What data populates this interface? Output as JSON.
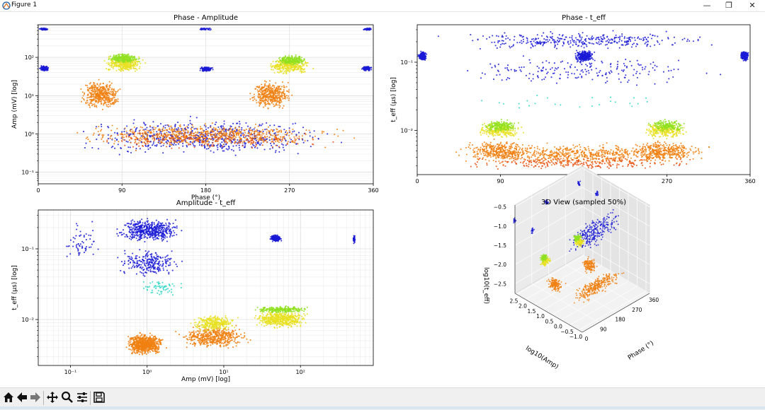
{
  "window": {
    "title": "Figure 1",
    "minimize_glyph": "—",
    "maximize_glyph": "❐",
    "close_glyph": "✕"
  },
  "colors": {
    "blue": "#1a1ad6",
    "cyan": "#30d8c8",
    "green": "#8fe020",
    "yellow": "#e8e020",
    "orange": "#f08010",
    "red": "#e85010"
  },
  "toolbar": {
    "items": [
      "home-icon",
      "back-icon",
      "forward-icon",
      "pan-icon",
      "zoom-icon",
      "configure-subplots-icon",
      "save-icon"
    ]
  },
  "chart_data": [
    {
      "type": "scatter",
      "title": "Phase - Amplitude",
      "xlabel": "Phase (°)",
      "ylabel": "Amp (mV) [log]",
      "xlim": [
        0,
        360
      ],
      "ylim_log10": [
        -1.3,
        2.85
      ],
      "xticks": [
        0,
        90,
        180,
        270,
        360
      ],
      "xtick_labels": [
        "0",
        "90",
        "180",
        "270",
        "360"
      ],
      "yticks_log10": [
        -1,
        0,
        1,
        2
      ],
      "ytick_labels": [
        "10⁻¹",
        "10⁰",
        "10¹",
        "10²"
      ],
      "grid": true,
      "clusters": [
        {
          "color": "blue",
          "n": 70,
          "x": [
            0,
            12
          ],
          "y": [
            2.7,
            2.77
          ]
        },
        {
          "color": "blue",
          "n": 70,
          "x": [
            348,
            360
          ],
          "y": [
            2.7,
            2.77
          ]
        },
        {
          "color": "blue",
          "n": 40,
          "x": [
            170,
            190
          ],
          "y": [
            2.7,
            2.77
          ]
        },
        {
          "color": "blue",
          "n": 110,
          "x": [
            0,
            13
          ],
          "y": [
            1.62,
            1.8
          ]
        },
        {
          "color": "blue",
          "n": 110,
          "x": [
            171,
            190
          ],
          "y": [
            1.6,
            1.78
          ]
        },
        {
          "color": "blue",
          "n": 90,
          "x": [
            346,
            360
          ],
          "y": [
            1.62,
            1.8
          ]
        },
        {
          "color": "blue",
          "n": 650,
          "x": [
            0,
            360
          ],
          "y": [
            -0.7,
            0.55
          ]
        },
        {
          "color": "orange",
          "n": 700,
          "x": [
            0,
            360
          ],
          "y": [
            -0.4,
            0.35
          ]
        },
        {
          "color": "red",
          "n": 200,
          "x": [
            0,
            360
          ],
          "y": [
            -0.5,
            0.2
          ]
        },
        {
          "color": "orange",
          "n": 420,
          "x": [
            40,
            95
          ],
          "y": [
            0.55,
            1.5
          ]
        },
        {
          "color": "orange",
          "n": 420,
          "x": [
            222,
            278
          ],
          "y": [
            0.55,
            1.5
          ]
        },
        {
          "color": "yellow",
          "n": 300,
          "x": [
            65,
            120
          ],
          "y": [
            1.55,
            2.1
          ]
        },
        {
          "color": "green",
          "n": 220,
          "x": [
            70,
            115
          ],
          "y": [
            1.8,
            2.15
          ]
        },
        {
          "color": "yellow",
          "n": 300,
          "x": [
            240,
            300
          ],
          "y": [
            1.5,
            2.05
          ]
        },
        {
          "color": "green",
          "n": 220,
          "x": [
            250,
            295
          ],
          "y": [
            1.75,
            2.1
          ]
        }
      ]
    },
    {
      "type": "scatter",
      "title": "Phase - t_eff",
      "xlabel": "Phase (°)",
      "ylabel": "t_eff (µs) [log]",
      "xlim": [
        0,
        360
      ],
      "ylim_log10": [
        -2.65,
        -0.45
      ],
      "xticks": [
        0,
        90,
        180,
        270,
        360
      ],
      "xtick_labels": [
        "0",
        "90",
        "180",
        "270",
        "360"
      ],
      "yticks_log10": [
        -2,
        -1
      ],
      "ytick_labels": [
        "10⁻²",
        "10⁻¹"
      ],
      "grid": false,
      "clusters": [
        {
          "color": "blue",
          "n": 350,
          "x": [
            0,
            360
          ],
          "y": [
            -0.85,
            -0.52
          ]
        },
        {
          "color": "blue",
          "n": 200,
          "x": [
            0,
            360
          ],
          "y": [
            -1.4,
            -0.85
          ]
        },
        {
          "color": "blue",
          "n": 220,
          "x": [
            0,
            12
          ],
          "y": [
            -1.0,
            -0.82
          ]
        },
        {
          "color": "blue",
          "n": 260,
          "x": [
            167,
            194
          ],
          "y": [
            -1.02,
            -0.8
          ]
        },
        {
          "color": "blue",
          "n": 220,
          "x": [
            348,
            360
          ],
          "y": [
            -1.0,
            -0.82
          ]
        },
        {
          "color": "cyan",
          "n": 25,
          "x": [
            20,
            340
          ],
          "y": [
            -1.75,
            -1.4
          ]
        },
        {
          "color": "orange",
          "n": 650,
          "x": [
            0,
            360
          ],
          "y": [
            -2.55,
            -2.15
          ]
        },
        {
          "color": "red",
          "n": 250,
          "x": [
            0,
            360
          ],
          "y": [
            -2.6,
            -2.35
          ]
        },
        {
          "color": "orange",
          "n": 300,
          "x": [
            40,
            135
          ],
          "y": [
            -2.5,
            -2.1
          ]
        },
        {
          "color": "orange",
          "n": 300,
          "x": [
            220,
            315
          ],
          "y": [
            -2.5,
            -2.1
          ]
        },
        {
          "color": "yellow",
          "n": 260,
          "x": [
            60,
            118
          ],
          "y": [
            -2.15,
            -1.85
          ]
        },
        {
          "color": "green",
          "n": 180,
          "x": [
            65,
            115
          ],
          "y": [
            -2.05,
            -1.82
          ]
        },
        {
          "color": "yellow",
          "n": 260,
          "x": [
            238,
            298
          ],
          "y": [
            -2.15,
            -1.85
          ]
        },
        {
          "color": "green",
          "n": 180,
          "x": [
            245,
            295
          ],
          "y": [
            -2.05,
            -1.82
          ]
        }
      ]
    },
    {
      "type": "scatter",
      "title": "Amplitude - t_eff",
      "xlabel": "Amp (mV) [log]",
      "ylabel": "t_eff (µs) [log]",
      "xlim_log10": [
        -1.42,
        2.95
      ],
      "ylim_log10": [
        -2.65,
        -0.45
      ],
      "xticks_log10": [
        -1,
        0,
        1,
        2
      ],
      "xtick_labels": [
        "10⁻¹",
        "10⁰",
        "10¹",
        "10²"
      ],
      "yticks_log10": [
        -2,
        -1
      ],
      "ytick_labels": [
        "10⁻²",
        "10⁻¹"
      ],
      "grid": true,
      "clusters": [
        {
          "color": "blue",
          "n": 500,
          "x": [
            -0.5,
            0.55
          ],
          "y": [
            -0.95,
            -0.52
          ]
        },
        {
          "color": "blue",
          "n": 250,
          "x": [
            -0.5,
            0.55
          ],
          "y": [
            -1.45,
            -0.95
          ]
        },
        {
          "color": "blue",
          "n": 60,
          "x": [
            -1.2,
            -0.5
          ],
          "y": [
            -1.3,
            -0.5
          ]
        },
        {
          "color": "cyan",
          "n": 60,
          "x": [
            -0.2,
            0.55
          ],
          "y": [
            -1.7,
            -1.4
          ]
        },
        {
          "color": "blue",
          "n": 160,
          "x": [
            1.58,
            1.78
          ],
          "y": [
            -0.92,
            -0.78
          ]
        },
        {
          "color": "blue",
          "n": 50,
          "x": [
            2.68,
            2.72
          ],
          "y": [
            -0.95,
            -0.78
          ]
        },
        {
          "color": "orange",
          "n": 700,
          "x": [
            -0.35,
            0.3
          ],
          "y": [
            -2.55,
            -2.15
          ]
        },
        {
          "color": "orange",
          "n": 500,
          "x": [
            0.3,
            1.45
          ],
          "y": [
            -2.45,
            -2.05
          ]
        },
        {
          "color": "yellow",
          "n": 300,
          "x": [
            0.5,
            1.25
          ],
          "y": [
            -2.2,
            -1.9
          ]
        },
        {
          "color": "yellow",
          "n": 500,
          "x": [
            1.3,
            2.2
          ],
          "y": [
            -2.15,
            -1.85
          ]
        },
        {
          "color": "green",
          "n": 250,
          "x": [
            1.3,
            2.2
          ],
          "y": [
            -1.92,
            -1.8
          ]
        }
      ]
    },
    {
      "type": "scatter3d",
      "title": "3D View (sampled 50%)",
      "xlabel": "Phase (°)",
      "ylabel": "log10(Amp)",
      "zlabel": "log10(t_eff)",
      "xticks": [
        0,
        90,
        180,
        270,
        360
      ],
      "yticks": [
        -1.0,
        -0.5,
        0.0,
        0.5,
        1.0,
        1.5,
        2.0,
        2.5
      ],
      "zticks": [
        -2.5,
        -2.0,
        -1.5,
        -1.0,
        -0.5
      ],
      "xtick_labels": [
        "0",
        "90",
        "180",
        "270",
        "360"
      ],
      "ytick_labels": [
        "−1.0",
        "−0.5",
        "0.0",
        "0.5",
        "1.0",
        "1.5",
        "2.0",
        "2.5"
      ],
      "ztick_labels": [
        "−2.5",
        "−2.0",
        "−1.5",
        "−1.0",
        "−0.5"
      ],
      "clusters": [
        {
          "color": "blue",
          "n": 20,
          "phase": [
            0,
            15
          ],
          "amp": [
            2.6,
            2.8
          ],
          "t": [
            -1.0,
            -0.8
          ]
        },
        {
          "color": "blue",
          "n": 20,
          "phase": [
            170,
            190
          ],
          "amp": [
            2.6,
            2.8
          ],
          "t": [
            -1.0,
            -0.8
          ]
        },
        {
          "color": "blue",
          "n": 20,
          "phase": [
            345,
            360
          ],
          "amp": [
            2.6,
            2.8
          ],
          "t": [
            -1.0,
            -0.8
          ]
        },
        {
          "color": "blue",
          "n": 20,
          "phase": [
            0,
            15
          ],
          "amp": [
            1.6,
            1.8
          ],
          "t": [
            -1.0,
            -0.8
          ]
        },
        {
          "color": "blue",
          "n": 20,
          "phase": [
            345,
            360
          ],
          "amp": [
            1.6,
            1.8
          ],
          "t": [
            -1.0,
            -0.8
          ]
        },
        {
          "color": "blue",
          "n": 260,
          "phase": [
            0,
            360
          ],
          "amp": [
            -0.5,
            0.5
          ],
          "t": [
            -1.4,
            -0.5
          ]
        },
        {
          "color": "orange",
          "n": 300,
          "phase": [
            0,
            360
          ],
          "amp": [
            -0.5,
            0.3
          ],
          "t": [
            -2.6,
            -2.1
          ]
        },
        {
          "color": "orange",
          "n": 150,
          "phase": [
            40,
            95
          ],
          "amp": [
            0.6,
            1.5
          ],
          "t": [
            -2.5,
            -2.1
          ]
        },
        {
          "color": "orange",
          "n": 150,
          "phase": [
            222,
            278
          ],
          "amp": [
            0.6,
            1.5
          ],
          "t": [
            -2.5,
            -2.1
          ]
        },
        {
          "color": "yellow",
          "n": 100,
          "phase": [
            65,
            120
          ],
          "amp": [
            1.6,
            2.1
          ],
          "t": [
            -2.1,
            -1.85
          ]
        },
        {
          "color": "green",
          "n": 80,
          "phase": [
            70,
            115
          ],
          "amp": [
            1.8,
            2.1
          ],
          "t": [
            -2.0,
            -1.8
          ]
        },
        {
          "color": "yellow",
          "n": 100,
          "phase": [
            245,
            300
          ],
          "amp": [
            1.6,
            2.1
          ],
          "t": [
            -2.1,
            -1.85
          ]
        },
        {
          "color": "green",
          "n": 80,
          "phase": [
            250,
            295
          ],
          "amp": [
            1.8,
            2.1
          ],
          "t": [
            -2.0,
            -1.8
          ]
        }
      ]
    }
  ]
}
